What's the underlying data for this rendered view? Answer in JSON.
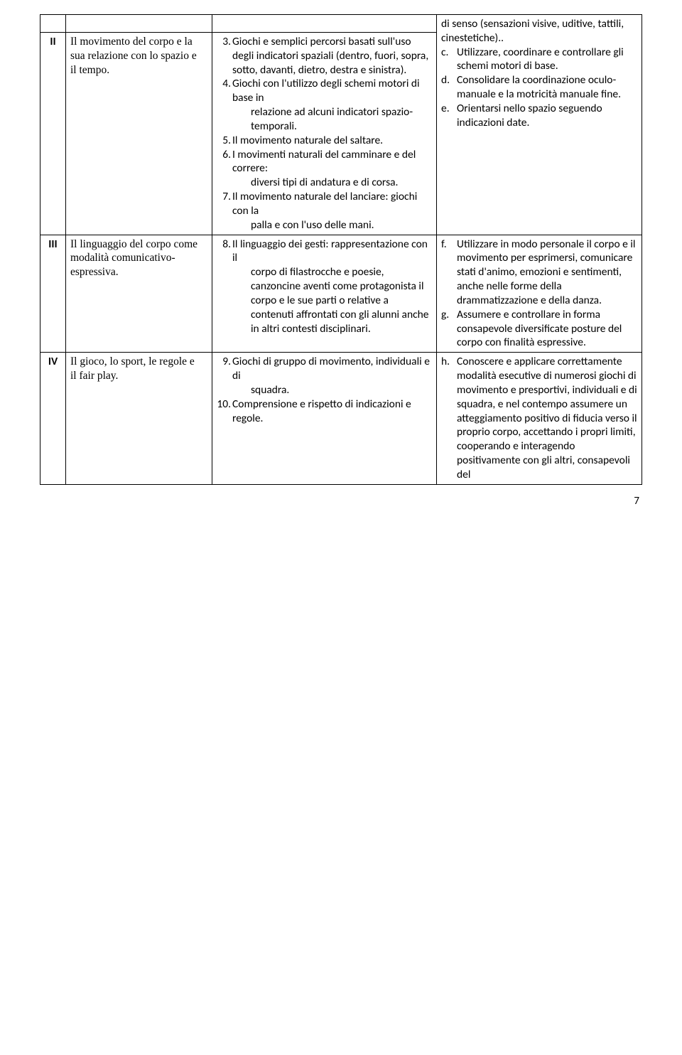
{
  "rows": {
    "pre": {
      "col3_text": "di senso (sensazioni visive, uditive, tattili, cinestetiche).."
    },
    "r2": {
      "num": "II",
      "colA": "Il movimento del corpo e la sua relazione con lo spazio e\nil tempo.",
      "colB": [
        {
          "n": "3.",
          "t": "Giochi e semplici percorsi basati sull'uso degli indicatori spaziali (dentro, fuori, sopra, sotto, davanti, dietro, destra e sinistra)."
        },
        {
          "n": "4.",
          "t": "Giochi con l'utilizzo degli schemi motori di base in",
          "indent": "relazione ad alcuni indicatori spazio-temporali."
        },
        {
          "n": "5.",
          "t": "Il movimento naturale del saltare."
        },
        {
          "n": "6.",
          "t": "I movimenti naturali del camminare e del correre:",
          "indent": "diversi tipi di andatura e di corsa."
        },
        {
          "n": "7.",
          "t": "Il movimento naturale del lanciare: giochi con la",
          "indent": "palla e con l'uso delle mani."
        }
      ],
      "colC": [
        {
          "m": "c.",
          "t": "Utilizzare, coordinare e controllare gli schemi motori di base."
        },
        {
          "m": "d.",
          "t": "Consolidare la coordinazione oculo-manuale e la motricità manuale fine."
        },
        {
          "m": "e.",
          "t": "Orientarsi nello spazio seguendo indicazioni date."
        }
      ]
    },
    "r3": {
      "num": "III",
      "colA": "Il linguaggio del corpo come\nmodalità comunicativo-espressiva.",
      "colB": [
        {
          "n": "8.",
          "t": "Il linguaggio dei gesti: rappresentazione con il",
          "indent": "corpo di filastrocche e poesie, canzoncine aventi come protagonista il corpo e le sue parti o relative a contenuti affrontati con gli alunni anche in altri contesti disciplinari."
        }
      ],
      "colC": [
        {
          "m": "f.",
          "t": "Utilizzare in modo personale il corpo e il movimento per esprimersi, comunicare stati d'animo, emozioni e sentimenti, anche nelle forme della drammatizzazione e della danza."
        },
        {
          "m": "g.",
          "t": "Assumere e controllare in forma consapevole diversificate posture del corpo con finalità espressive."
        }
      ]
    },
    "r4": {
      "num": "IV",
      "colA": "Il gioco, lo sport, le regole e\nil fair play.",
      "colB": [
        {
          "n": "9.",
          "t": "Giochi di gruppo di movimento, individuali e di",
          "indent": "squadra."
        },
        {
          "n": "10.",
          "t": "Comprensione e rispetto di indicazioni e regole."
        }
      ],
      "colC": [
        {
          "m": "h.",
          "t": "Conoscere e applicare correttamente modalità esecutive di numerosi giochi di movimento e presportivi, individuali e di squadra, e nel contempo assumere un atteggiamento positivo di fiducia verso il proprio corpo, accettando i propri limiti, cooperando e interagendo positivamente con gli altri, consapevoli del"
        }
      ]
    }
  },
  "page_number": "7"
}
